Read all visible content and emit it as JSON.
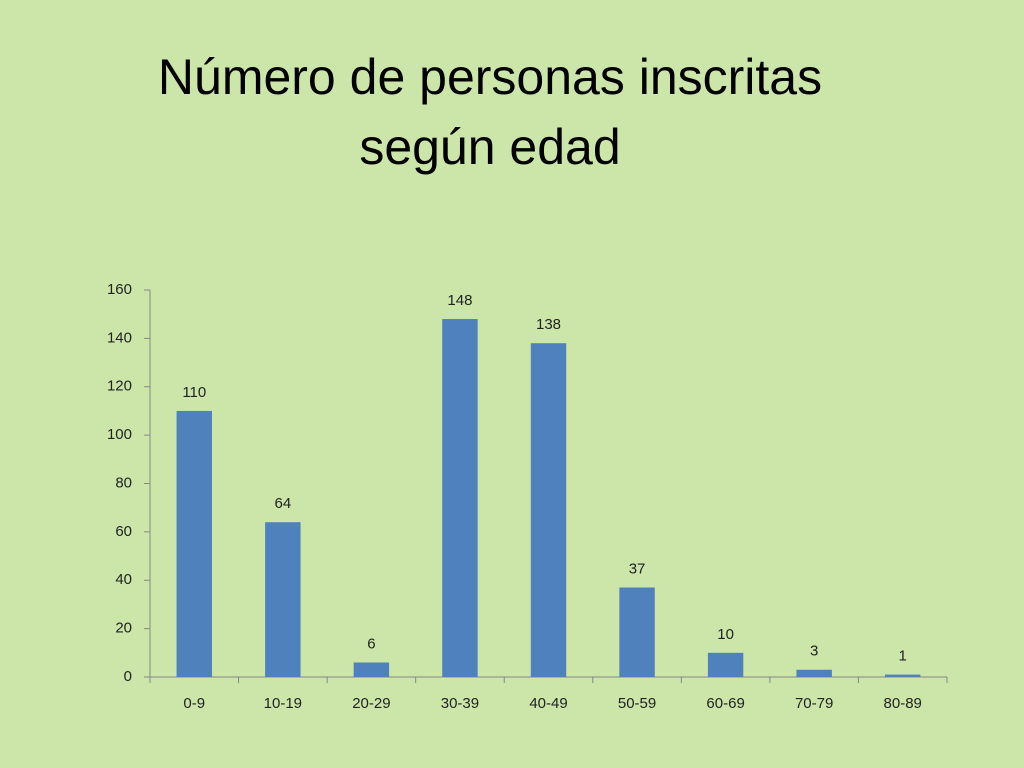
{
  "chart_data": {
    "type": "bar",
    "title": "Número de personas inscritas según edad",
    "categories": [
      "0-9",
      "10-19",
      "20-29",
      "30-39",
      "40-49",
      "50-59",
      "60-69",
      "70-79",
      "80-89"
    ],
    "values": [
      110,
      64,
      6,
      148,
      138,
      37,
      10,
      3,
      1
    ],
    "color": "#4f81bd",
    "ylim": [
      0,
      160
    ],
    "yticks": [
      0,
      20,
      40,
      60,
      80,
      100,
      120,
      140,
      160
    ],
    "grid": false,
    "data_labels": true
  }
}
